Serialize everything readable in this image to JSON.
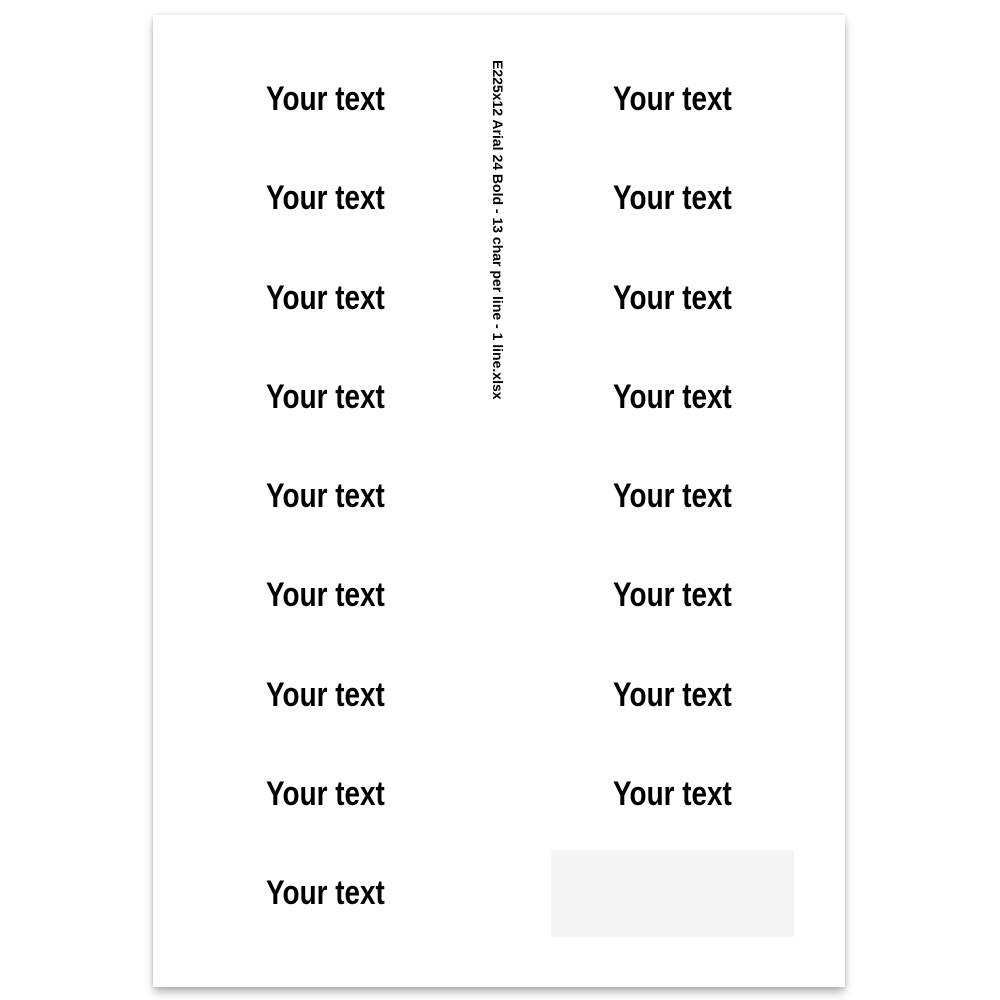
{
  "page": {
    "background_color": "#ffffff"
  },
  "sheet": {
    "annotation": "E225x12 Arial 24 Bold - 13 char per line - 1 line.xlsx",
    "colors": {
      "sheet_bg": "#ffffff",
      "text_color": "#000000",
      "empty_label_bg": "#f5f5f5"
    },
    "labels": [
      {
        "row": 1,
        "col": "left",
        "text": "Your text"
      },
      {
        "row": 2,
        "col": "left",
        "text": "Your text"
      },
      {
        "row": 3,
        "col": "left",
        "text": "Your text"
      },
      {
        "row": 4,
        "col": "left",
        "text": "Your text"
      },
      {
        "row": 5,
        "col": "left",
        "text": "Your text"
      },
      {
        "row": 6,
        "col": "left",
        "text": "Your text"
      },
      {
        "row": 7,
        "col": "left",
        "text": "Your text"
      },
      {
        "row": 8,
        "col": "left",
        "text": "Your text"
      },
      {
        "row": 9,
        "col": "left",
        "text": "Your text"
      },
      {
        "row": 1,
        "col": "right",
        "text": "Your text"
      },
      {
        "row": 2,
        "col": "right",
        "text": "Your text"
      },
      {
        "row": 3,
        "col": "right",
        "text": "Your text"
      },
      {
        "row": 4,
        "col": "right",
        "text": "Your text"
      },
      {
        "row": 5,
        "col": "right",
        "text": "Your text"
      },
      {
        "row": 6,
        "col": "right",
        "text": "Your text"
      },
      {
        "row": 7,
        "col": "right",
        "text": "Your text"
      },
      {
        "row": 8,
        "col": "right",
        "text": "Your text"
      },
      {
        "row": 9,
        "col": "right",
        "empty": true
      }
    ]
  }
}
